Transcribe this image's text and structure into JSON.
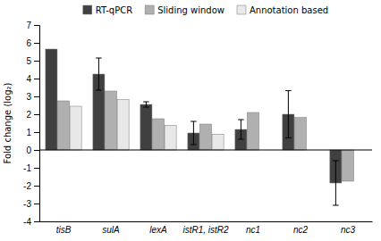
{
  "chart_data": {
    "type": "bar",
    "ylabel": "Fold change (log₂)",
    "categories": [
      "tisB",
      "sulA",
      "lexA",
      "istR1, istR2",
      "nc1",
      "nc2",
      "nc3"
    ],
    "series": [
      {
        "name": "RT-qPCR",
        "color": "#404040",
        "values": [
          5.65,
          4.25,
          2.55,
          0.95,
          1.15,
          2.0,
          -1.85
        ],
        "errors": [
          null,
          0.9,
          0.15,
          0.65,
          0.55,
          1.32,
          1.25
        ]
      },
      {
        "name": "Sliding window",
        "color": "#b0b0b0",
        "values": [
          2.75,
          3.3,
          1.75,
          1.45,
          2.1,
          1.82,
          -1.75
        ]
      },
      {
        "name": "Annotation based",
        "color": "#e8e8e8",
        "values": [
          2.45,
          2.82,
          1.38,
          0.88,
          null,
          null,
          null
        ]
      }
    ],
    "ylim": [
      -4,
      7
    ],
    "yticks": [
      -4,
      -3,
      -2,
      -1,
      0,
      1,
      2,
      3,
      4,
      5,
      6,
      7
    ],
    "legend": "top",
    "grid": false
  }
}
